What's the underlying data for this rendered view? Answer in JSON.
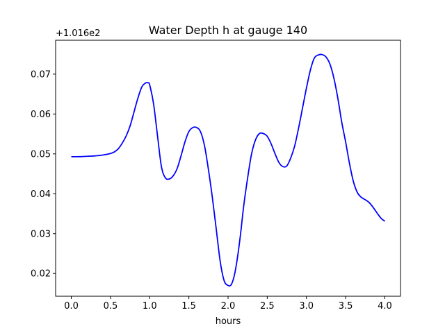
{
  "chart_data": {
    "type": "line",
    "title": "Water Depth h at gauge 140",
    "xlabel": "hours",
    "ylabel": "",
    "offset_label": "+1.016e2",
    "xlim": [
      -0.2,
      4.2
    ],
    "ylim": [
      0.0143,
      0.0785
    ],
    "xticks": [
      0.0,
      0.5,
      1.0,
      1.5,
      2.0,
      2.5,
      3.0,
      3.5,
      4.0
    ],
    "xtick_labels": [
      "0.0",
      "0.5",
      "1.0",
      "1.5",
      "2.0",
      "2.5",
      "3.0",
      "3.5",
      "4.0"
    ],
    "yticks": [
      0.02,
      0.03,
      0.04,
      0.05,
      0.06,
      0.07
    ],
    "ytick_labels": [
      "0.02",
      "0.03",
      "0.04",
      "0.05",
      "0.06",
      "0.07"
    ],
    "grid": false,
    "series": [
      {
        "color": "#0000ff",
        "x": [
          0.0,
          0.1,
          0.2,
          0.3,
          0.4,
          0.5,
          0.55,
          0.6,
          0.65,
          0.7,
          0.75,
          0.8,
          0.85,
          0.9,
          0.95,
          0.98,
          1.0,
          1.05,
          1.1,
          1.15,
          1.2,
          1.25,
          1.3,
          1.35,
          1.4,
          1.45,
          1.5,
          1.55,
          1.6,
          1.65,
          1.7,
          1.75,
          1.8,
          1.85,
          1.9,
          1.95,
          2.0,
          2.04,
          2.08,
          2.12,
          2.16,
          2.2,
          2.25,
          2.3,
          2.35,
          2.4,
          2.45,
          2.5,
          2.55,
          2.6,
          2.65,
          2.7,
          2.75,
          2.8,
          2.85,
          2.9,
          2.95,
          3.0,
          3.05,
          3.1,
          3.15,
          3.2,
          3.25,
          3.3,
          3.35,
          3.4,
          3.45,
          3.5,
          3.55,
          3.6,
          3.65,
          3.7,
          3.75,
          3.8,
          3.85,
          3.9,
          3.95,
          4.0
        ],
        "y": [
          0.0493,
          0.0493,
          0.0494,
          0.0495,
          0.0497,
          0.0501,
          0.0505,
          0.0513,
          0.0527,
          0.0545,
          0.057,
          0.0605,
          0.064,
          0.0668,
          0.0678,
          0.0678,
          0.0673,
          0.0625,
          0.0545,
          0.0468,
          0.044,
          0.0437,
          0.0445,
          0.0463,
          0.0495,
          0.053,
          0.0556,
          0.0566,
          0.0566,
          0.0555,
          0.052,
          0.046,
          0.039,
          0.031,
          0.023,
          0.0182,
          0.017,
          0.0172,
          0.0195,
          0.024,
          0.03,
          0.037,
          0.044,
          0.05,
          0.0535,
          0.0551,
          0.0551,
          0.0544,
          0.0525,
          0.05,
          0.0478,
          0.0468,
          0.047,
          0.049,
          0.052,
          0.0565,
          0.0615,
          0.0665,
          0.071,
          0.074,
          0.0748,
          0.0749,
          0.0743,
          0.0725,
          0.069,
          0.064,
          0.058,
          0.053,
          0.0475,
          0.043,
          0.0403,
          0.0391,
          0.0385,
          0.0378,
          0.0366,
          0.0352,
          0.0339,
          0.0331
        ]
      }
    ]
  }
}
